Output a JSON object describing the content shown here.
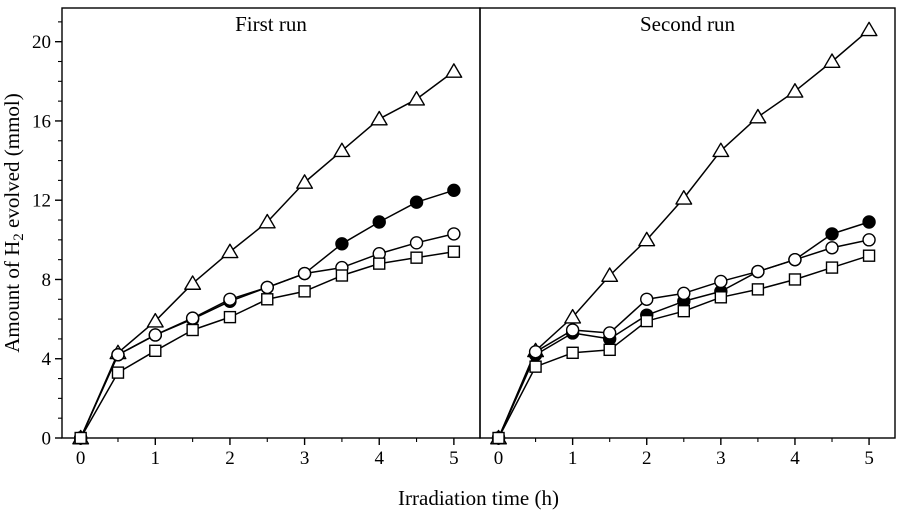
{
  "figure": {
    "background": "#ffffff"
  },
  "chart_data": {
    "type": "line",
    "title": "",
    "xlabel": "Irradiation time (h)",
    "ylabel": "Amount of H2 evolved (mmol)",
    "ylabel_parts": {
      "pre": "Amount of H",
      "sub": "2",
      "post": " evolved (mmol)"
    },
    "xlim": [
      -0.25,
      5.35
    ],
    "ylim": [
      0,
      21.7
    ],
    "x_ticks": [
      0,
      1,
      2,
      3,
      4,
      5
    ],
    "y_ticks": [
      0,
      4,
      8,
      12,
      16,
      20
    ],
    "x_minor_step": 0.5,
    "y_minor_step": 1,
    "x": [
      0,
      0.5,
      1,
      1.5,
      2,
      2.5,
      3,
      3.5,
      4,
      4.5,
      5
    ],
    "line_color": "#000000",
    "marker_open_fill": "#ffffff",
    "panels": [
      {
        "label": "First run",
        "series": [
          {
            "name": "open-triangle",
            "marker": "triangle",
            "fill": "open",
            "values": [
              0,
              4.3,
              5.9,
              7.8,
              9.4,
              10.9,
              12.9,
              14.5,
              16.1,
              17.1,
              18.5
            ]
          },
          {
            "name": "filled-circle",
            "marker": "circle",
            "fill": "filled",
            "values": [
              0,
              4.2,
              5.2,
              6.0,
              6.9,
              7.6,
              8.3,
              9.8,
              10.9,
              11.9,
              12.5
            ]
          },
          {
            "name": "open-circle",
            "marker": "circle",
            "fill": "open",
            "values": [
              0,
              4.2,
              5.2,
              6.05,
              7.0,
              7.6,
              8.3,
              8.6,
              9.3,
              9.85,
              10.3
            ]
          },
          {
            "name": "open-square",
            "marker": "square",
            "fill": "open",
            "values": [
              0,
              3.3,
              4.4,
              5.45,
              6.1,
              7.0,
              7.4,
              8.2,
              8.8,
              9.1,
              9.4
            ]
          }
        ]
      },
      {
        "label": "Second run",
        "series": [
          {
            "name": "open-triangle",
            "marker": "triangle",
            "fill": "open",
            "values": [
              0,
              4.4,
              6.1,
              8.2,
              10.0,
              12.1,
              14.5,
              16.2,
              17.5,
              19.0,
              20.6
            ]
          },
          {
            "name": "filled-circle",
            "marker": "circle",
            "fill": "filled",
            "values": [
              0,
              4.2,
              5.3,
              5.0,
              6.2,
              6.9,
              7.4,
              8.4,
              9.0,
              10.3,
              10.9
            ]
          },
          {
            "name": "open-circle",
            "marker": "circle",
            "fill": "open",
            "values": [
              0,
              4.35,
              5.45,
              5.3,
              7.0,
              7.3,
              7.9,
              8.4,
              9.0,
              9.6,
              10.0
            ]
          },
          {
            "name": "open-square",
            "marker": "square",
            "fill": "open",
            "values": [
              0,
              3.6,
              4.3,
              4.45,
              5.9,
              6.4,
              7.1,
              7.5,
              8.0,
              8.6,
              9.2
            ]
          }
        ]
      }
    ]
  }
}
